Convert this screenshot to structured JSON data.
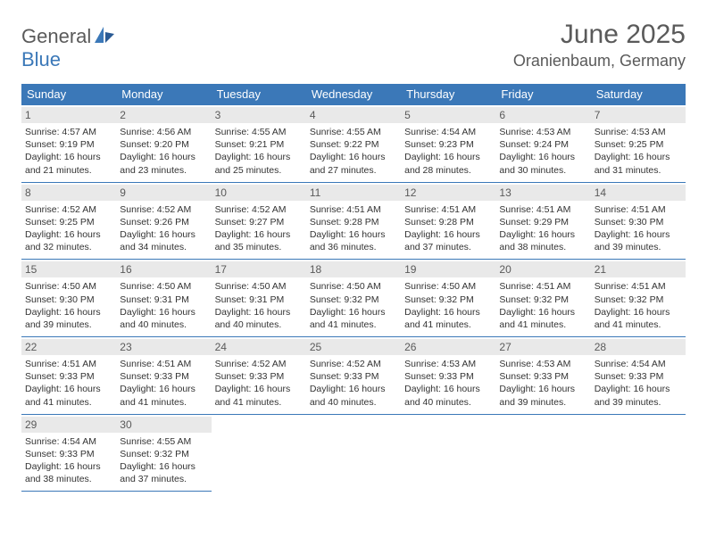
{
  "logo": {
    "part1": "General",
    "part2": "Blue"
  },
  "title": "June 2025",
  "location": "Oranienbaum, Germany",
  "colors": {
    "header_bg": "#3b78b8",
    "header_fg": "#ffffff",
    "daynum_bg": "#e9e9e9",
    "text": "#333333",
    "rule": "#3b78b8"
  },
  "weekdays": [
    "Sunday",
    "Monday",
    "Tuesday",
    "Wednesday",
    "Thursday",
    "Friday",
    "Saturday"
  ],
  "days": [
    {
      "n": 1,
      "sunrise": "4:57 AM",
      "sunset": "9:19 PM",
      "daylight": "16 hours and 21 minutes."
    },
    {
      "n": 2,
      "sunrise": "4:56 AM",
      "sunset": "9:20 PM",
      "daylight": "16 hours and 23 minutes."
    },
    {
      "n": 3,
      "sunrise": "4:55 AM",
      "sunset": "9:21 PM",
      "daylight": "16 hours and 25 minutes."
    },
    {
      "n": 4,
      "sunrise": "4:55 AM",
      "sunset": "9:22 PM",
      "daylight": "16 hours and 27 minutes."
    },
    {
      "n": 5,
      "sunrise": "4:54 AM",
      "sunset": "9:23 PM",
      "daylight": "16 hours and 28 minutes."
    },
    {
      "n": 6,
      "sunrise": "4:53 AM",
      "sunset": "9:24 PM",
      "daylight": "16 hours and 30 minutes."
    },
    {
      "n": 7,
      "sunrise": "4:53 AM",
      "sunset": "9:25 PM",
      "daylight": "16 hours and 31 minutes."
    },
    {
      "n": 8,
      "sunrise": "4:52 AM",
      "sunset": "9:25 PM",
      "daylight": "16 hours and 32 minutes."
    },
    {
      "n": 9,
      "sunrise": "4:52 AM",
      "sunset": "9:26 PM",
      "daylight": "16 hours and 34 minutes."
    },
    {
      "n": 10,
      "sunrise": "4:52 AM",
      "sunset": "9:27 PM",
      "daylight": "16 hours and 35 minutes."
    },
    {
      "n": 11,
      "sunrise": "4:51 AM",
      "sunset": "9:28 PM",
      "daylight": "16 hours and 36 minutes."
    },
    {
      "n": 12,
      "sunrise": "4:51 AM",
      "sunset": "9:28 PM",
      "daylight": "16 hours and 37 minutes."
    },
    {
      "n": 13,
      "sunrise": "4:51 AM",
      "sunset": "9:29 PM",
      "daylight": "16 hours and 38 minutes."
    },
    {
      "n": 14,
      "sunrise": "4:51 AM",
      "sunset": "9:30 PM",
      "daylight": "16 hours and 39 minutes."
    },
    {
      "n": 15,
      "sunrise": "4:50 AM",
      "sunset": "9:30 PM",
      "daylight": "16 hours and 39 minutes."
    },
    {
      "n": 16,
      "sunrise": "4:50 AM",
      "sunset": "9:31 PM",
      "daylight": "16 hours and 40 minutes."
    },
    {
      "n": 17,
      "sunrise": "4:50 AM",
      "sunset": "9:31 PM",
      "daylight": "16 hours and 40 minutes."
    },
    {
      "n": 18,
      "sunrise": "4:50 AM",
      "sunset": "9:32 PM",
      "daylight": "16 hours and 41 minutes."
    },
    {
      "n": 19,
      "sunrise": "4:50 AM",
      "sunset": "9:32 PM",
      "daylight": "16 hours and 41 minutes."
    },
    {
      "n": 20,
      "sunrise": "4:51 AM",
      "sunset": "9:32 PM",
      "daylight": "16 hours and 41 minutes."
    },
    {
      "n": 21,
      "sunrise": "4:51 AM",
      "sunset": "9:32 PM",
      "daylight": "16 hours and 41 minutes."
    },
    {
      "n": 22,
      "sunrise": "4:51 AM",
      "sunset": "9:33 PM",
      "daylight": "16 hours and 41 minutes."
    },
    {
      "n": 23,
      "sunrise": "4:51 AM",
      "sunset": "9:33 PM",
      "daylight": "16 hours and 41 minutes."
    },
    {
      "n": 24,
      "sunrise": "4:52 AM",
      "sunset": "9:33 PM",
      "daylight": "16 hours and 41 minutes."
    },
    {
      "n": 25,
      "sunrise": "4:52 AM",
      "sunset": "9:33 PM",
      "daylight": "16 hours and 40 minutes."
    },
    {
      "n": 26,
      "sunrise": "4:53 AM",
      "sunset": "9:33 PM",
      "daylight": "16 hours and 40 minutes."
    },
    {
      "n": 27,
      "sunrise": "4:53 AM",
      "sunset": "9:33 PM",
      "daylight": "16 hours and 39 minutes."
    },
    {
      "n": 28,
      "sunrise": "4:54 AM",
      "sunset": "9:33 PM",
      "daylight": "16 hours and 39 minutes."
    },
    {
      "n": 29,
      "sunrise": "4:54 AM",
      "sunset": "9:33 PM",
      "daylight": "16 hours and 38 minutes."
    },
    {
      "n": 30,
      "sunrise": "4:55 AM",
      "sunset": "9:32 PM",
      "daylight": "16 hours and 37 minutes."
    }
  ],
  "labels": {
    "sunrise": "Sunrise: ",
    "sunset": "Sunset: ",
    "daylight": "Daylight: "
  }
}
